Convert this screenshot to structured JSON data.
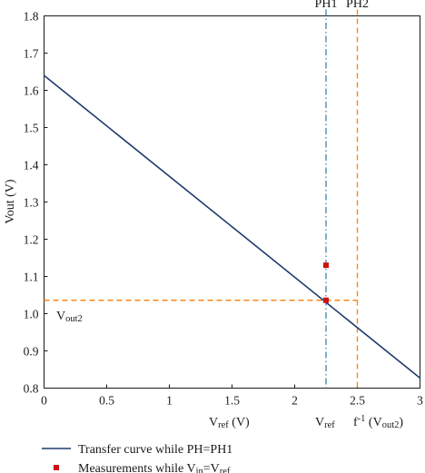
{
  "chart_data": {
    "type": "line",
    "xlim": [
      0,
      3
    ],
    "ylim": [
      0.8,
      1.8
    ],
    "x_ticks": [
      0,
      0.5,
      1,
      1.5,
      2,
      2.5,
      3
    ],
    "x_tick_labels": [
      "0",
      "0.5",
      "1",
      "1.5",
      "2",
      "2.5",
      "3"
    ],
    "y_ticks": [
      0.8,
      0.9,
      1.0,
      1.1,
      1.2,
      1.3,
      1.4,
      1.5,
      1.6,
      1.7,
      1.8
    ],
    "y_tick_labels": [
      "0.8",
      "0.9",
      "1.0",
      "1.1",
      "1.2",
      "1.3",
      "1.4",
      "1.5",
      "1.6",
      "1.7",
      "1.8"
    ],
    "ylabel": "Vout (V)",
    "xlabel": {
      "main": "V",
      "sub": "ref",
      "tail": " (V)"
    },
    "grid": false,
    "series": [
      {
        "name": "Transfer curve while PH=PH1",
        "kind": "line",
        "color": "#1f3a6e",
        "x": [
          0,
          3
        ],
        "y": [
          1.64,
          0.827
        ]
      },
      {
        "name": "Measurements while Vin=Vref",
        "kind": "scatter",
        "color": "#cc1111",
        "x": [
          2.25,
          2.25
        ],
        "y": [
          1.13,
          1.036
        ]
      }
    ],
    "reference_lines": {
      "ph1_x": 2.25,
      "ph2_x": 2.5,
      "vout2_y": 1.036,
      "ph1_color": "#2a7ab5",
      "ph2_color": "#f28a1a",
      "hline_color": "#f28a1a"
    },
    "annotations": {
      "ph1": "PH1",
      "ph2": "PH2",
      "vout2": {
        "main": "V",
        "sub": "out2"
      },
      "vref": {
        "main": "V",
        "sub": "ref"
      },
      "finv": {
        "pre": "f",
        "sup": "-1",
        "mid": " (V",
        "sub": "out2",
        "post": ")"
      }
    },
    "legend": {
      "placement": "bottom-left",
      "entries": [
        {
          "text": "Transfer curve while PH=PH1"
        },
        {
          "pre": "Measurements while V",
          "sub1": "in",
          "mid": "=V",
          "sub2": "ref"
        }
      ]
    }
  }
}
